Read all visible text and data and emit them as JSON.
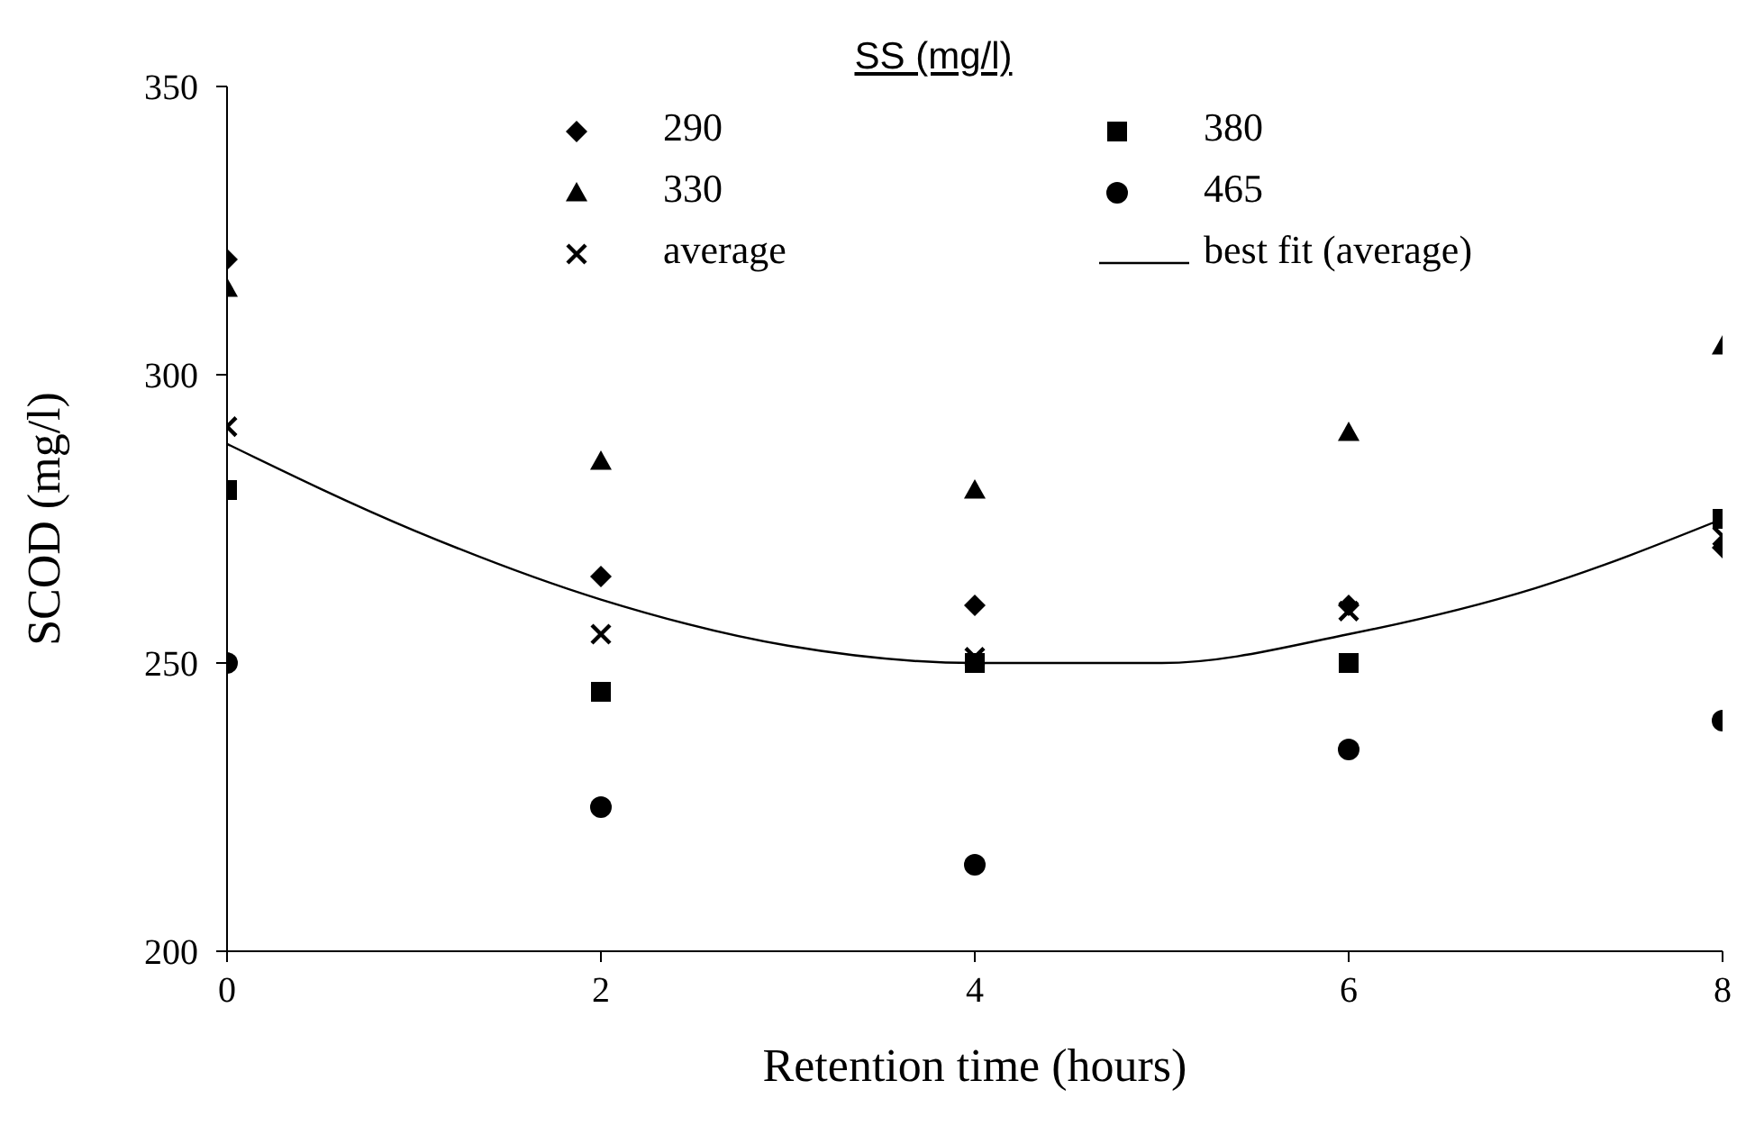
{
  "chart_data": {
    "type": "scatter",
    "xlabel": "Retention time (hours)",
    "ylabel": "SCOD (mg/l)",
    "legend_title": "SS (mg/l)",
    "x": [
      0,
      2,
      4,
      6,
      8
    ],
    "xlim": [
      0,
      8
    ],
    "xticks": [
      0,
      2,
      4,
      6,
      8
    ],
    "ylim": [
      200,
      350
    ],
    "yticks": [
      200,
      250,
      300,
      350
    ],
    "grid": false,
    "legend": "top",
    "series": [
      {
        "name": "290",
        "color": "#000000",
        "marker": "diamond",
        "values": [
          320,
          265,
          260,
          260,
          270
        ]
      },
      {
        "name": "330",
        "color": "#000000",
        "marker": "triangle",
        "values": [
          315,
          285,
          280,
          290,
          305
        ]
      },
      {
        "name": "average",
        "color": "#000000",
        "marker": "cross",
        "values": [
          291,
          255,
          251,
          259,
          272
        ]
      },
      {
        "name": "380",
        "color": "#000000",
        "marker": "square",
        "values": [
          280,
          245,
          250,
          250,
          275
        ]
      },
      {
        "name": "465",
        "color": "#000000",
        "marker": "circle",
        "values": [
          250,
          225,
          215,
          235,
          240
        ]
      },
      {
        "name": "best fit (average)",
        "type": "line",
        "color": "#000000",
        "marker": "none",
        "line_style": "solid",
        "x": [
          0,
          1,
          2,
          3,
          4,
          5,
          6,
          7,
          8
        ],
        "values": [
          288,
          273,
          261,
          253,
          250,
          250,
          255,
          263,
          275
        ]
      }
    ]
  }
}
